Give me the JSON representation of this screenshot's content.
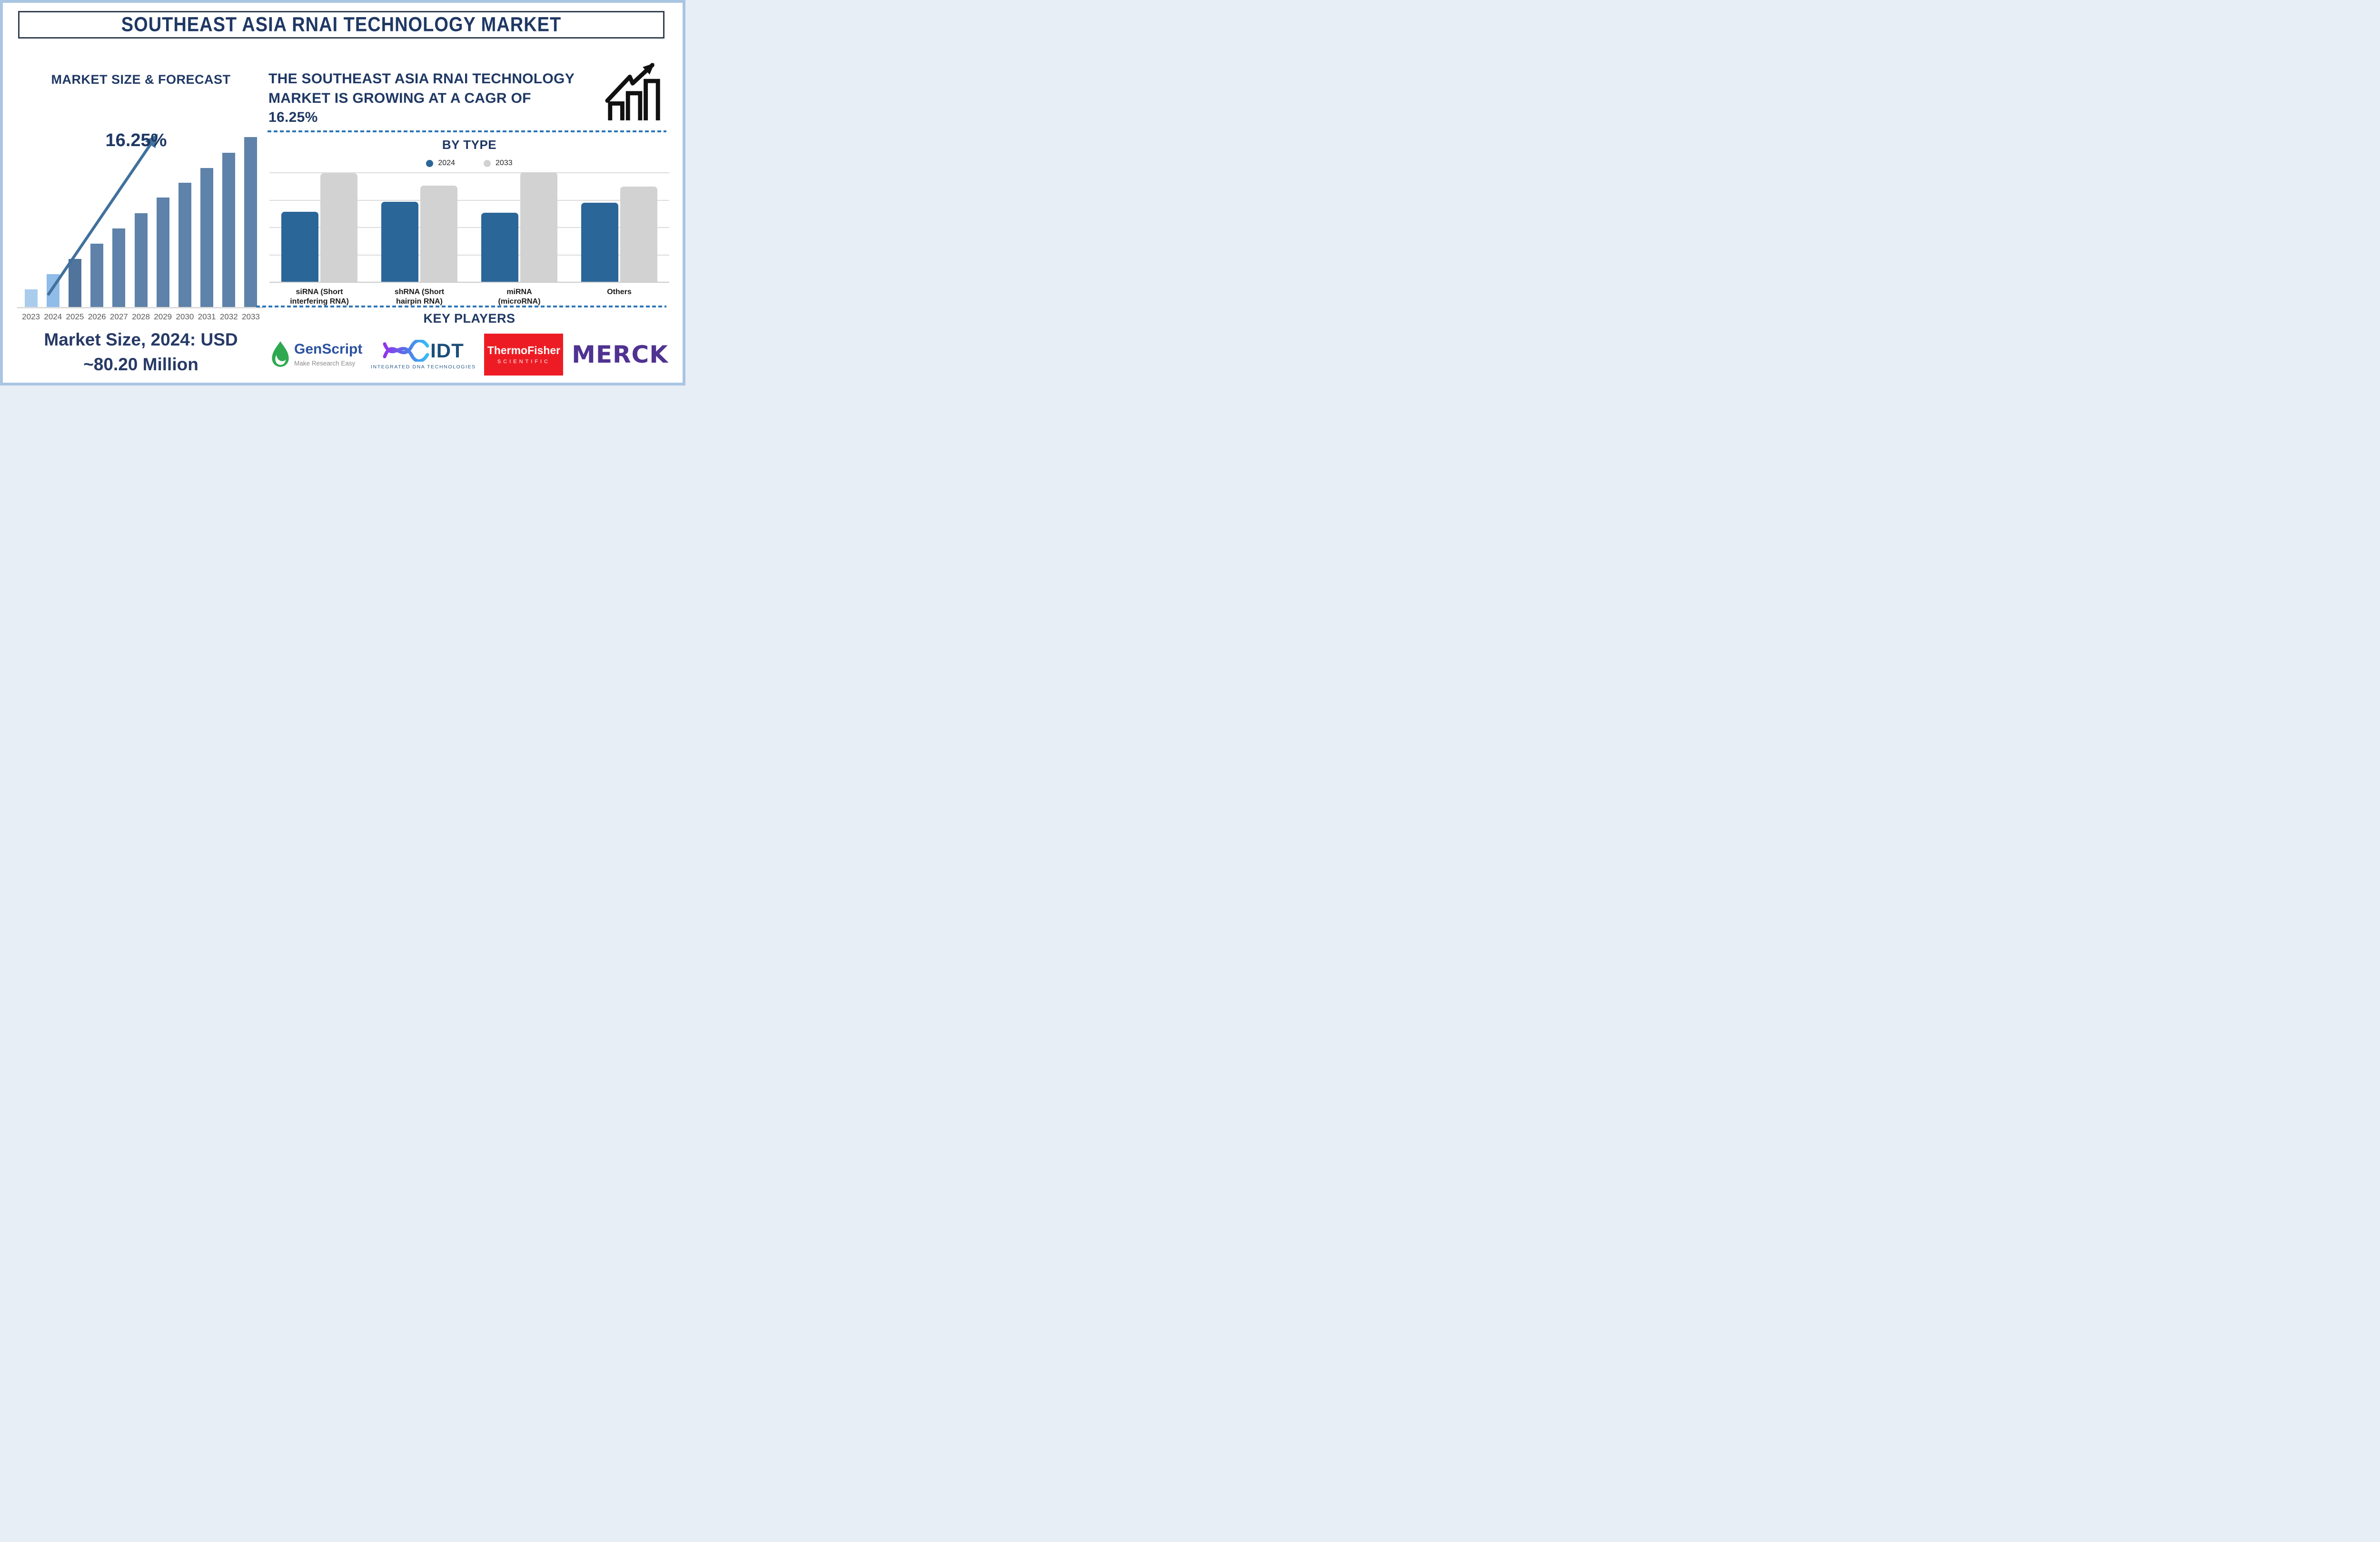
{
  "header": {
    "title": "SOUTHEAST ASIA RNAI TECHNOLOGY MARKET"
  },
  "left_panel": {
    "chart_title": "MARKET SIZE & FORECAST",
    "cagr_label": "16.25%",
    "footer_line1": "Market Size, 2024: USD",
    "footer_line2": "~80.20 Million"
  },
  "right_panel": {
    "headline_line1": "THE SOUTHEAST ASIA RNAI TECHNOLOGY",
    "headline_line2": "MARKET IS GROWING AT A CAGR OF",
    "headline_line3": "16.25%",
    "by_type_title": "BY TYPE",
    "key_players_title": "KEY PLAYERS",
    "logos": {
      "genscript": {
        "name": "GenScript",
        "tagline": "Make Research Easy"
      },
      "idt": {
        "name": "IDT",
        "subtext": "INTEGRATED DNA TECHNOLOGIES"
      },
      "thermofisher": {
        "name": "ThermoFisher",
        "subtext": "SCIENTIFIC"
      },
      "merck": {
        "name": "MERCK"
      }
    }
  },
  "chart_data": [
    {
      "id": "market_size_forecast",
      "type": "bar",
      "title": "MARKET SIZE & FORECAST",
      "categories": [
        "2023",
        "2024",
        "2025",
        "2026",
        "2027",
        "2028",
        "2029",
        "2030",
        "2031",
        "2032",
        "2033"
      ],
      "values_relative_pct": [
        10.5,
        19.3,
        28.3,
        37.2,
        46.2,
        55.1,
        64.3,
        73.0,
        81.9,
        90.9,
        100
      ],
      "anchor_value": {
        "year": "2024",
        "value_usd_million": 80.2,
        "label": "Market Size, 2024: USD ~80.20 Million"
      },
      "cagr_pct": 16.25,
      "bar_colors": [
        "#A9CCEC",
        "#8FBCE8",
        "#51749D",
        "#5E82A9",
        "#5E82A9",
        "#5E82A9",
        "#5E82A9",
        "#5E82A9",
        "#5E82A9",
        "#5E82A9",
        "#5E82A9"
      ],
      "xlabel": "",
      "ylabel": "",
      "y_axis_labeled": false,
      "grid": "off",
      "annotation": "16.25% growth arrow pointing up-right"
    },
    {
      "id": "by_type",
      "type": "bar",
      "title": "BY TYPE",
      "categories": [
        "siRNA (Short interfering RNA)",
        "shRNA (Short hairpin RNA)",
        "miRNA (microRNA)",
        "Others"
      ],
      "label_lines": [
        [
          "siRNA (Short",
          "interfering RNA)"
        ],
        [
          "shRNA (Short",
          "hairpin RNA)"
        ],
        [
          "miRNA",
          "(microRNA)"
        ],
        [
          "Others"
        ]
      ],
      "series": [
        {
          "name": "2024",
          "values_relative_pct": [
            64,
            73,
            63,
            72
          ],
          "color": "#2B6699"
        },
        {
          "name": "2033",
          "values_relative_pct": [
            99,
            88,
            100,
            87
          ],
          "color": "#D2D2D2"
        }
      ],
      "xlabel": "",
      "ylabel": "",
      "y_axis_labeled": false,
      "grid": "horizontal",
      "legend_position": "top"
    }
  ],
  "colors": {
    "navy_text": "#1F3864",
    "footer_navy": "#273A66",
    "steel_bar": "#5E82A9",
    "light_blue_bar": "#9CC3E6",
    "right_chart_blue": "#2B6699",
    "right_chart_gray": "#D2D2D2",
    "dashed_line_blue": "#2E75B6",
    "arrow_blue": "#41719C",
    "axis_label_gray": "#595959",
    "page_border_blue": "#A9C6E2",
    "title_box_border": "#333F50",
    "gridline_gray": "#DCDCDC",
    "genscript_green": "#2FA84F",
    "genscript_blue": "#2B52A0",
    "idt_navy": "#1B4E79",
    "thermofisher_red": "#ED1C24",
    "merck_purple": "#503291",
    "growth_icon_black": "#111111"
  }
}
